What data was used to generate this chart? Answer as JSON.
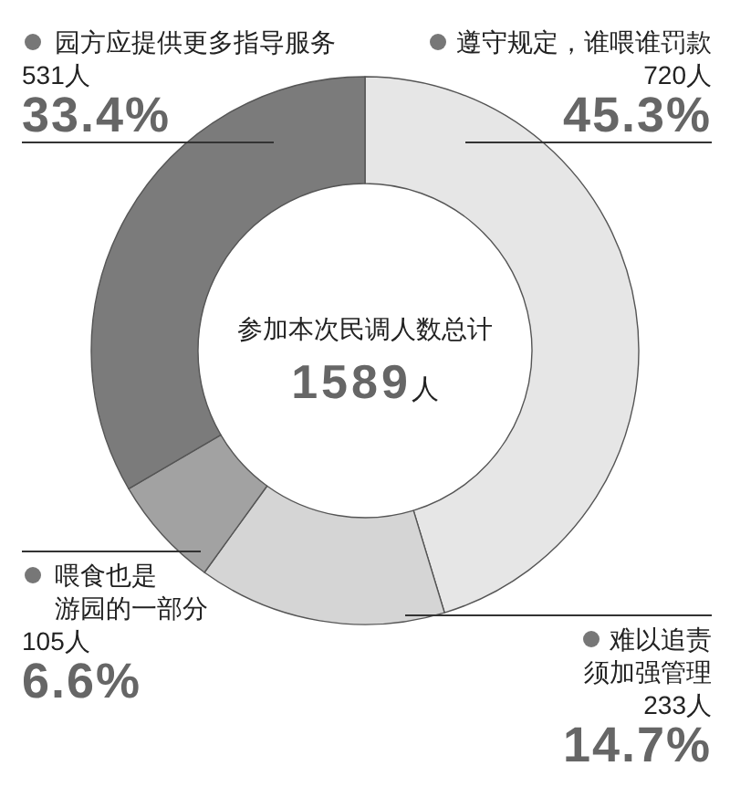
{
  "chart_data": {
    "type": "donut",
    "title": "参加本次民调人数总计",
    "annotations": [
      "1589人"
    ],
    "categories": [
      "遵守规定，谁喂谁罚款",
      "难以追责须加强管理",
      "喂食也是游园的一部分",
      "园方应提供更多指导服务"
    ],
    "values": [
      720,
      233,
      105,
      531
    ],
    "colors": [
      "#e6e6e6",
      "#d5d5d5",
      "#a2a2a2",
      "#7b7b7b"
    ],
    "value_labels": [
      "720人\n45.3%",
      "233人\n14.7%",
      "105人\n6.6%",
      "531人\n33.4%"
    ]
  }
}
